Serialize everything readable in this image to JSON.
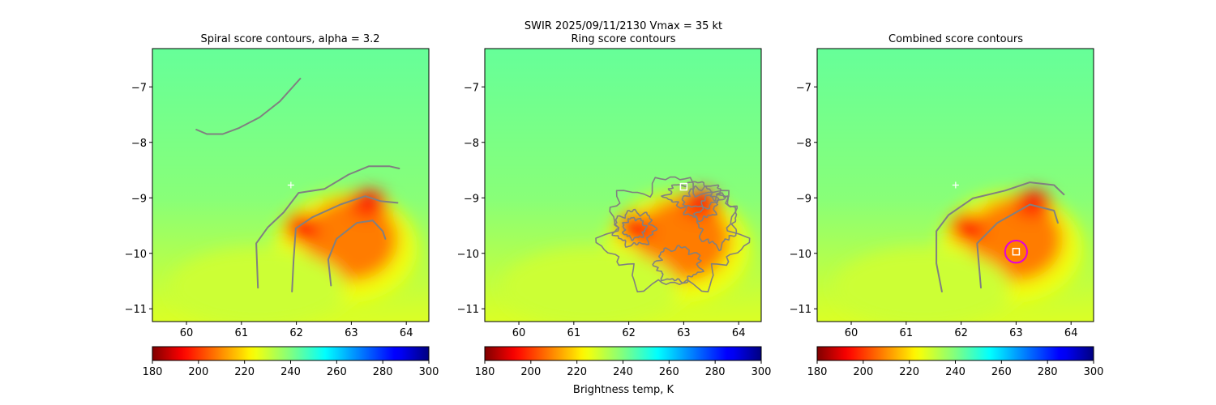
{
  "suptitle": "SWIR  2025/09/11/2130    Vmax = 35 kt",
  "colorbar_label": "Brightness temp, K",
  "chart_data": {
    "type": "heatmap",
    "colormap": "jet_r",
    "clim": [
      180,
      300
    ],
    "colorbar_ticks": [
      180,
      200,
      220,
      240,
      260,
      280,
      300
    ],
    "xlim": [
      59.38,
      64.41
    ],
    "ylim": [
      -11.23,
      -6.31
    ],
    "xticks": [
      60,
      61,
      62,
      63,
      64
    ],
    "yticks": [
      -7,
      -8,
      -9,
      -10,
      -11
    ],
    "background_temp": 240,
    "cold_features": [
      {
        "lon": 62.9,
        "lat": -9.9,
        "rx": 1.3,
        "ry": 1.0,
        "temp": 225
      },
      {
        "lon": 63.0,
        "lat": -9.75,
        "rx": 0.85,
        "ry": 0.75,
        "temp": 208
      },
      {
        "lon": 63.3,
        "lat": -9.1,
        "rx": 0.35,
        "ry": 0.25,
        "temp": 197
      },
      {
        "lon": 62.1,
        "lat": -9.55,
        "rx": 0.3,
        "ry": 0.28,
        "temp": 196
      },
      {
        "lon": 61.3,
        "lat": -10.6,
        "rx": 1.6,
        "ry": 0.7,
        "temp": 230
      }
    ],
    "panels": [
      {
        "title": "Spiral score contours, alpha =  3.2",
        "plus_marker": [
          61.9,
          -8.77
        ],
        "contours": [
          [
            [
              60.18,
              -7.77
            ],
            [
              60.37,
              -7.85
            ],
            [
              60.66,
              -7.85
            ],
            [
              60.96,
              -7.74
            ],
            [
              61.33,
              -7.55
            ],
            [
              61.7,
              -7.26
            ],
            [
              62.07,
              -6.85
            ]
          ],
          [
            [
              61.3,
              -10.62
            ],
            [
              61.27,
              -9.82
            ],
            [
              61.48,
              -9.53
            ],
            [
              61.77,
              -9.26
            ],
            [
              62.04,
              -8.91
            ],
            [
              62.51,
              -8.84
            ],
            [
              62.95,
              -8.58
            ],
            [
              63.32,
              -8.43
            ],
            [
              63.69,
              -8.43
            ],
            [
              63.87,
              -8.47
            ]
          ],
          [
            [
              61.92,
              -10.69
            ],
            [
              61.95,
              -10.11
            ],
            [
              61.99,
              -9.55
            ],
            [
              62.29,
              -9.35
            ],
            [
              62.8,
              -9.12
            ],
            [
              63.25,
              -8.97
            ],
            [
              63.54,
              -9.06
            ],
            [
              63.84,
              -9.09
            ]
          ],
          [
            [
              62.63,
              -10.58
            ],
            [
              62.58,
              -10.11
            ],
            [
              62.73,
              -9.74
            ],
            [
              63.1,
              -9.45
            ],
            [
              63.39,
              -9.41
            ],
            [
              63.57,
              -9.6
            ],
            [
              63.62,
              -9.74
            ]
          ]
        ]
      },
      {
        "title": "Ring score contours",
        "plus_marker": null,
        "square_marker": [
          63.0,
          -8.8
        ],
        "ring_loops": [
          {
            "lon": 62.8,
            "lat": -9.65,
            "rx": 1.2,
            "ry": 0.95
          },
          {
            "lon": 62.1,
            "lat": -9.55,
            "rx": 0.35,
            "ry": 0.3
          },
          {
            "lon": 62.1,
            "lat": -9.55,
            "rx": 0.2,
            "ry": 0.18
          },
          {
            "lon": 63.3,
            "lat": -9.1,
            "rx": 0.3,
            "ry": 0.28
          },
          {
            "lon": 63.6,
            "lat": -9.4,
            "rx": 0.35,
            "ry": 0.45
          },
          {
            "lon": 62.9,
            "lat": -10.2,
            "rx": 0.4,
            "ry": 0.3
          },
          {
            "lon": 63.2,
            "lat": -8.95,
            "rx": 0.5,
            "ry": 0.22
          }
        ]
      },
      {
        "title": "Combined score contours",
        "plus_marker": [
          61.9,
          -8.77
        ],
        "square_marker": [
          63.0,
          -9.97
        ],
        "circle_marker": {
          "lon": 63.0,
          "lat": -9.97,
          "radius_deg": 0.2,
          "color": "#e000e0"
        },
        "contours": [
          [
            [
              61.65,
              -10.69
            ],
            [
              61.55,
              -10.18
            ],
            [
              61.55,
              -9.6
            ],
            [
              61.77,
              -9.31
            ],
            [
              62.21,
              -9.01
            ],
            [
              62.8,
              -8.87
            ],
            [
              63.25,
              -8.72
            ],
            [
              63.69,
              -8.77
            ],
            [
              63.87,
              -8.94
            ]
          ],
          [
            [
              62.36,
              -10.62
            ],
            [
              62.29,
              -9.82
            ],
            [
              62.66,
              -9.45
            ],
            [
              63.25,
              -9.12
            ],
            [
              63.69,
              -9.23
            ],
            [
              63.76,
              -9.45
            ]
          ]
        ]
      }
    ],
    "contour_color": "#808080"
  }
}
